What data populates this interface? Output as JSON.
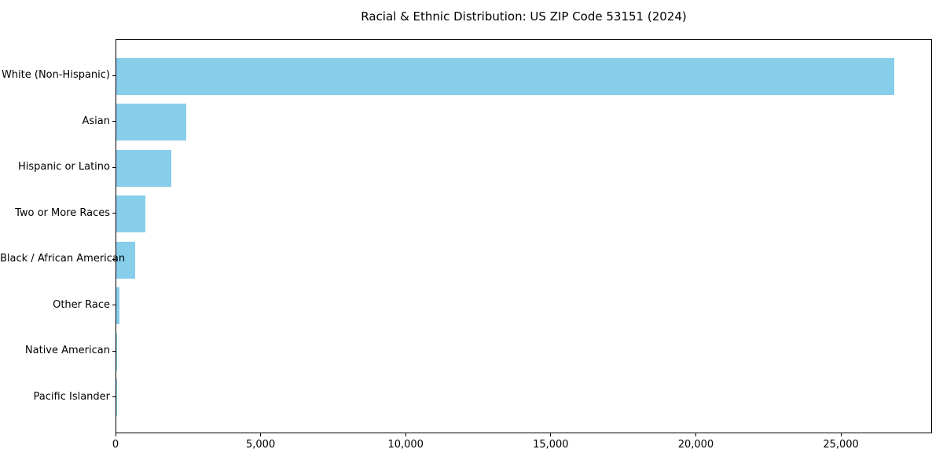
{
  "title": "Racial & Ethnic Distribution: US ZIP Code 53151 (2024)",
  "colors": {
    "bar": "#87CEEB",
    "axis": "#000000",
    "text": "#000000",
    "background": "#ffffff"
  },
  "chart_data": {
    "type": "bar",
    "orientation": "horizontal",
    "title": "Racial & Ethnic Distribution: US ZIP Code 53151 (2024)",
    "xlabel": "",
    "ylabel": "",
    "categories": [
      "White (Non-Hispanic)",
      "Asian",
      "Hispanic or Latino",
      "Two or More Races",
      "Black / African American",
      "Other Race",
      "Native American",
      "Pacific Islander"
    ],
    "values": [
      26800,
      2400,
      1900,
      1000,
      660,
      100,
      10,
      4
    ],
    "xlim": [
      0,
      28140
    ],
    "x_ticks": [
      0,
      5000,
      10000,
      15000,
      20000,
      25000
    ],
    "x_tick_labels": [
      "0",
      "5,000",
      "10,000",
      "15,000",
      "20,000",
      "25,000"
    ],
    "bar_color": "#87CEEB",
    "grid": false,
    "legend": false
  }
}
